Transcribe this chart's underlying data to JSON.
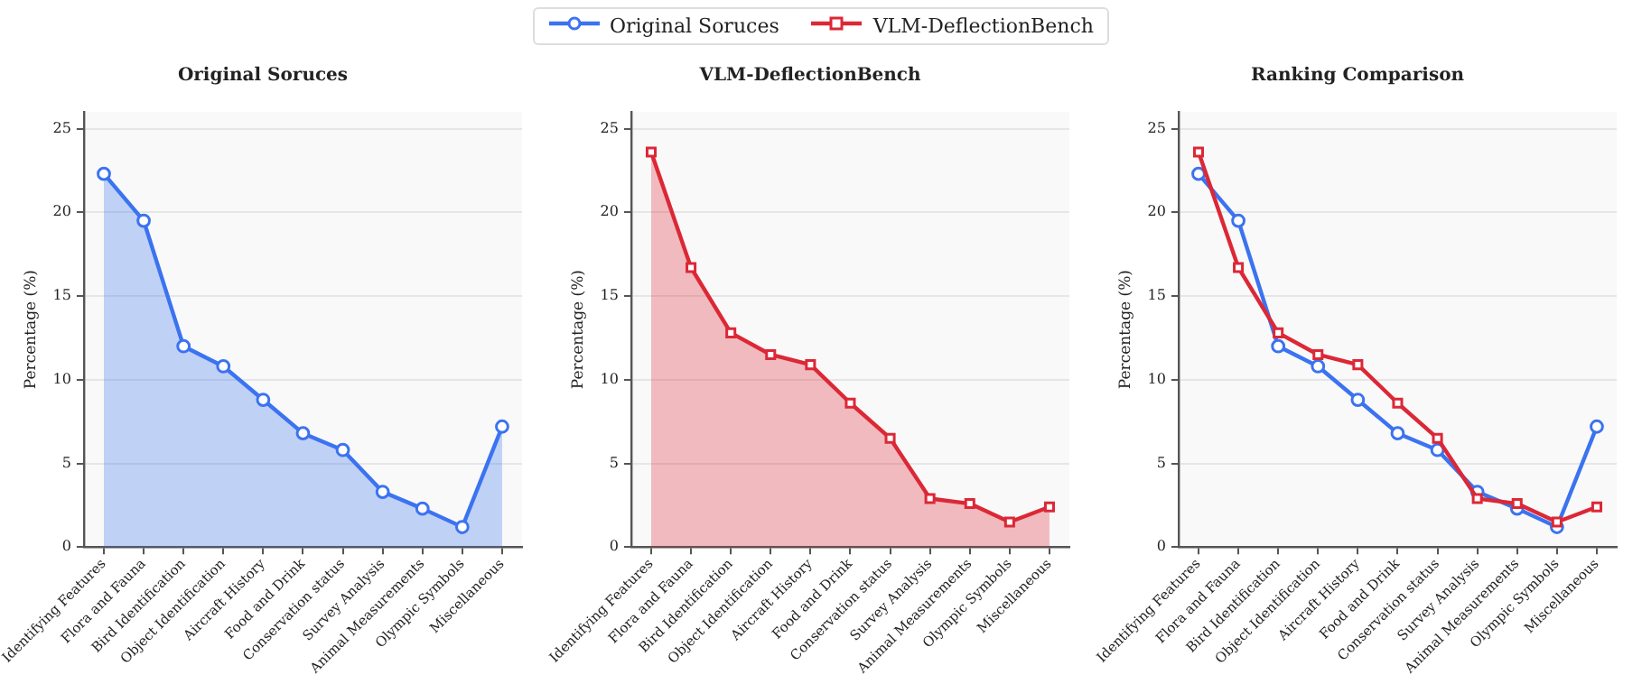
{
  "chart_data": [
    {
      "type": "area",
      "title": "Original Soruces",
      "ylabel": "Percentage (%)",
      "categories": [
        "Identifying Features",
        "Flora and Fauna",
        "Bird Identification",
        "Object Identification",
        "Aircraft History",
        "Food and Drink",
        "Conservation status",
        "Survey Analysis",
        "Animal Measurements",
        "Olympic Symbols",
        "Miscellaneous"
      ],
      "series": [
        {
          "color": "#3b73f0",
          "marker": "circle",
          "values": [
            22.3,
            19.5,
            12.0,
            10.8,
            8.8,
            6.8,
            5.8,
            3.3,
            2.3,
            1.2,
            7.2
          ]
        }
      ],
      "ylim": [
        0,
        26
      ],
      "yticks": [
        0,
        5,
        10,
        15,
        20,
        25
      ],
      "grid": "y",
      "legend": false,
      "line_style": "solid"
    },
    {
      "type": "area",
      "title": "VLM-DeflectionBench",
      "ylabel": "Percentage (%)",
      "categories": [
        "Identifying Features",
        "Flora and Fauna",
        "Bird Identification",
        "Object Identification",
        "Aircraft History",
        "Food and Drink",
        "Conservation status",
        "Survey Analysis",
        "Animal Measurements",
        "Olympic Symbols",
        "Miscellaneous"
      ],
      "series": [
        {
          "color": "#dc2836",
          "marker": "square",
          "values": [
            23.6,
            16.7,
            12.8,
            11.5,
            10.9,
            8.6,
            6.5,
            2.9,
            2.6,
            1.5,
            2.4
          ]
        }
      ],
      "ylim": [
        0,
        26
      ],
      "yticks": [
        0,
        5,
        10,
        15,
        20,
        25
      ],
      "grid": "y",
      "legend": false,
      "line_style": "solid"
    },
    {
      "type": "line",
      "title": "Ranking Comparison",
      "ylabel": "Percentage (%)",
      "categories": [
        "Identifying Features",
        "Flora and Fauna",
        "Bird Identification",
        "Object Identification",
        "Aircraft History",
        "Food and Drink",
        "Conservation status",
        "Survey Analysis",
        "Animal Measurements",
        "Olympic Symbols",
        "Miscellaneous"
      ],
      "series": [
        {
          "name": "Original Soruces",
          "color": "#3b73f0",
          "marker": "circle",
          "values": [
            22.3,
            19.5,
            12.0,
            10.8,
            8.8,
            6.8,
            5.8,
            3.3,
            2.3,
            1.2,
            7.2
          ]
        },
        {
          "name": "VLM-DeflectionBench",
          "color": "#dc2836",
          "marker": "square",
          "values": [
            23.6,
            16.7,
            12.8,
            11.5,
            10.9,
            8.6,
            6.5,
            2.9,
            2.6,
            1.5,
            2.4
          ]
        }
      ],
      "ylim": [
        0,
        26
      ],
      "yticks": [
        0,
        5,
        10,
        15,
        20,
        25
      ],
      "grid": "y",
      "legend": "top",
      "line_style": "solid"
    }
  ]
}
